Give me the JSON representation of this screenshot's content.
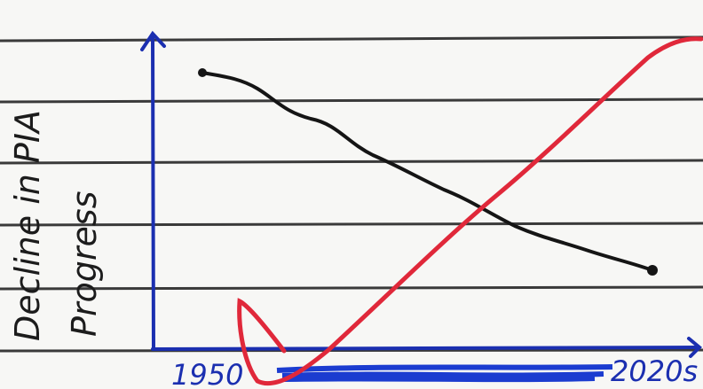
{
  "axis": {
    "y_label": [
      "Decline in PIA",
      "Progress"
    ],
    "x_start": "1950",
    "x_end": "2020s"
  }
}
